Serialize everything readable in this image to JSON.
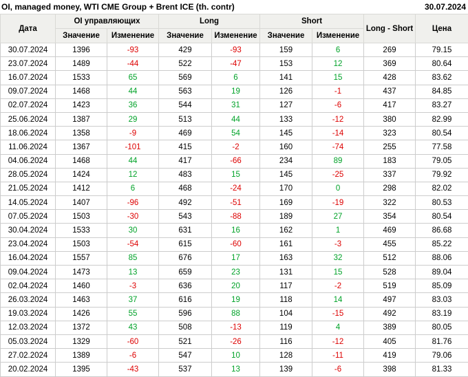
{
  "chart_data": {
    "type": "table",
    "title": "OI, managed money, WTI CME Group + Brent ICE (th. contr)",
    "report_date": "30.07.2024",
    "group_headers": {
      "date": "Дата",
      "oi": "OI управляющих",
      "long": "Long",
      "short": "Short",
      "long_short": "Long - Short",
      "price": "Цена"
    },
    "sub_headers": {
      "value": "Значение",
      "change": "Изменение"
    },
    "rows": [
      {
        "date": "30.07.2024",
        "oi": 1396,
        "oi_chg": -93,
        "long": 429,
        "long_chg": -93,
        "short": 159,
        "short_chg": 6,
        "long_short": 269,
        "price": "79.15"
      },
      {
        "date": "23.07.2024",
        "oi": 1489,
        "oi_chg": -44,
        "long": 522,
        "long_chg": -47,
        "short": 153,
        "short_chg": 12,
        "long_short": 369,
        "price": "80.64"
      },
      {
        "date": "16.07.2024",
        "oi": 1533,
        "oi_chg": 65,
        "long": 569,
        "long_chg": 6,
        "short": 141,
        "short_chg": 15,
        "long_short": 428,
        "price": "83.62"
      },
      {
        "date": "09.07.2024",
        "oi": 1468,
        "oi_chg": 44,
        "long": 563,
        "long_chg": 19,
        "short": 126,
        "short_chg": -1,
        "long_short": 437,
        "price": "84.85"
      },
      {
        "date": "02.07.2024",
        "oi": 1423,
        "oi_chg": 36,
        "long": 544,
        "long_chg": 31,
        "short": 127,
        "short_chg": -6,
        "long_short": 417,
        "price": "83.27"
      },
      {
        "date": "25.06.2024",
        "oi": 1387,
        "oi_chg": 29,
        "long": 513,
        "long_chg": 44,
        "short": 133,
        "short_chg": -12,
        "long_short": 380,
        "price": "82.99"
      },
      {
        "date": "18.06.2024",
        "oi": 1358,
        "oi_chg": -9,
        "long": 469,
        "long_chg": 54,
        "short": 145,
        "short_chg": -14,
        "long_short": 323,
        "price": "80.54"
      },
      {
        "date": "11.06.2024",
        "oi": 1367,
        "oi_chg": -101,
        "long": 415,
        "long_chg": -2,
        "short": 160,
        "short_chg": -74,
        "long_short": 255,
        "price": "77.58"
      },
      {
        "date": "04.06.2024",
        "oi": 1468,
        "oi_chg": 44,
        "long": 417,
        "long_chg": -66,
        "short": 234,
        "short_chg": 89,
        "long_short": 183,
        "price": "79.05"
      },
      {
        "date": "28.05.2024",
        "oi": 1424,
        "oi_chg": 12,
        "long": 483,
        "long_chg": 15,
        "short": 145,
        "short_chg": -25,
        "long_short": 337,
        "price": "79.92"
      },
      {
        "date": "21.05.2024",
        "oi": 1412,
        "oi_chg": 6,
        "long": 468,
        "long_chg": -24,
        "short": 170,
        "short_chg": 0,
        "long_short": 298,
        "price": "82.02"
      },
      {
        "date": "14.05.2024",
        "oi": 1407,
        "oi_chg": -96,
        "long": 492,
        "long_chg": -51,
        "short": 169,
        "short_chg": -19,
        "long_short": 322,
        "price": "80.53"
      },
      {
        "date": "07.05.2024",
        "oi": 1503,
        "oi_chg": -30,
        "long": 543,
        "long_chg": -88,
        "short": 189,
        "short_chg": 27,
        "long_short": 354,
        "price": "80.54"
      },
      {
        "date": "30.04.2024",
        "oi": 1533,
        "oi_chg": 30,
        "long": 631,
        "long_chg": 16,
        "short": 162,
        "short_chg": 1,
        "long_short": 469,
        "price": "86.68"
      },
      {
        "date": "23.04.2024",
        "oi": 1503,
        "oi_chg": -54,
        "long": 615,
        "long_chg": -60,
        "short": 161,
        "short_chg": -3,
        "long_short": 455,
        "price": "85.22"
      },
      {
        "date": "16.04.2024",
        "oi": 1557,
        "oi_chg": 85,
        "long": 676,
        "long_chg": 17,
        "short": 163,
        "short_chg": 32,
        "long_short": 512,
        "price": "88.06"
      },
      {
        "date": "09.04.2024",
        "oi": 1473,
        "oi_chg": 13,
        "long": 659,
        "long_chg": 23,
        "short": 131,
        "short_chg": 15,
        "long_short": 528,
        "price": "89.04"
      },
      {
        "date": "02.04.2024",
        "oi": 1460,
        "oi_chg": -3,
        "long": 636,
        "long_chg": 20,
        "short": 117,
        "short_chg": -2,
        "long_short": 519,
        "price": "85.09"
      },
      {
        "date": "26.03.2024",
        "oi": 1463,
        "oi_chg": 37,
        "long": 616,
        "long_chg": 19,
        "short": 118,
        "short_chg": 14,
        "long_short": 497,
        "price": "83.03"
      },
      {
        "date": "19.03.2024",
        "oi": 1426,
        "oi_chg": 55,
        "long": 596,
        "long_chg": 88,
        "short": 104,
        "short_chg": -15,
        "long_short": 492,
        "price": "83.19"
      },
      {
        "date": "12.03.2024",
        "oi": 1372,
        "oi_chg": 43,
        "long": 508,
        "long_chg": -13,
        "short": 119,
        "short_chg": 4,
        "long_short": 389,
        "price": "80.05"
      },
      {
        "date": "05.03.2024",
        "oi": 1329,
        "oi_chg": -60,
        "long": 521,
        "long_chg": -26,
        "short": 116,
        "short_chg": -12,
        "long_short": 405,
        "price": "81.76"
      },
      {
        "date": "27.02.2024",
        "oi": 1389,
        "oi_chg": -6,
        "long": 547,
        "long_chg": 10,
        "short": 128,
        "short_chg": -11,
        "long_short": 419,
        "price": "79.06"
      },
      {
        "date": "20.02.2024",
        "oi": 1395,
        "oi_chg": -43,
        "long": 537,
        "long_chg": 13,
        "short": 139,
        "short_chg": -6,
        "long_short": 398,
        "price": "81.33"
      }
    ]
  },
  "colors": {
    "positive_change": "#00a228",
    "negative_change": "#dd0000",
    "header_bg": "#f0f0ed",
    "grid_border": "#cccccc"
  }
}
